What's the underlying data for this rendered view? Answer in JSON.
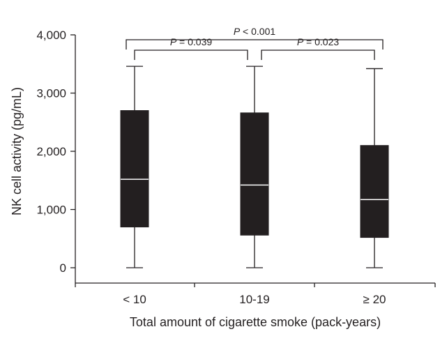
{
  "chart_data": {
    "type": "box",
    "title": "",
    "xlabel": "Total amount of cigarette smoke (pack-years)",
    "ylabel": "NK cell activity (pg/mL)",
    "ylim": [
      0,
      4000
    ],
    "yticks": [
      0,
      1000,
      2000,
      3000,
      4000
    ],
    "ytick_labels": [
      "0",
      "1,000",
      "2,000",
      "3,000",
      "4,000"
    ],
    "grid": false,
    "legend": "none",
    "categories": [
      "< 10",
      "10-19",
      "≥ 20"
    ],
    "boxes": [
      {
        "category": "< 10",
        "min": 0,
        "q1": 700,
        "median": 1520,
        "q3": 2700,
        "max": 3460
      },
      {
        "category": "10-19",
        "min": 0,
        "q1": 560,
        "median": 1420,
        "q3": 2660,
        "max": 3460
      },
      {
        "category": "≥ 20",
        "min": 0,
        "q1": 520,
        "median": 1170,
        "q3": 2100,
        "max": 3420
      }
    ],
    "comparisons": [
      {
        "from": 0,
        "to": 2,
        "p_prefix": "P",
        "p_text": " < 0.001",
        "level": 2
      },
      {
        "from": 0,
        "to": 1,
        "p_prefix": "P",
        "p_text": " = 0.039",
        "level": 1
      },
      {
        "from": 1,
        "to": 2,
        "p_prefix": "P",
        "p_text": " = 0.023",
        "level": 1
      }
    ],
    "colors": {
      "box_fill": "#231f20",
      "median_line": "#ffffff",
      "axis": "#231f20"
    }
  }
}
